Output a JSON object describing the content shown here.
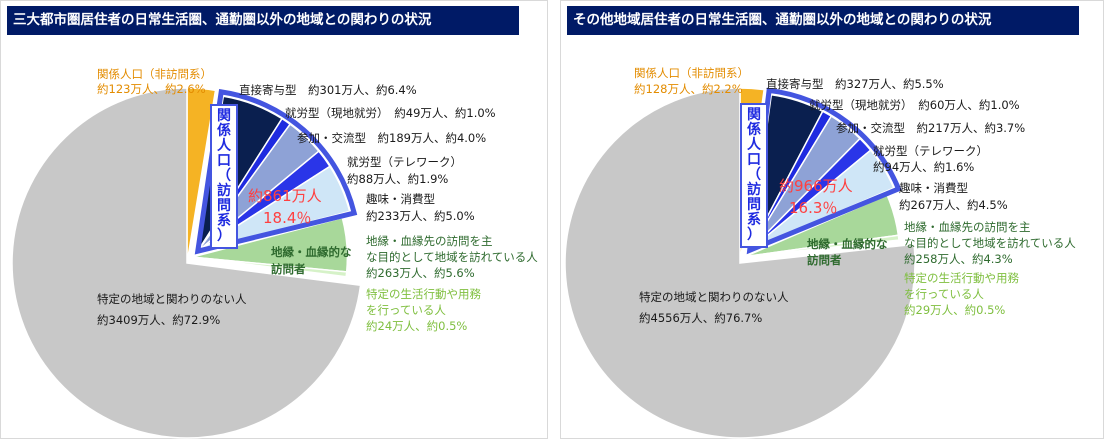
{
  "chart_data": [
    {
      "type": "pie",
      "title": "三大都市圏居住者の日常生活圏、通勤圏以外の地域との関わりの状況",
      "colors": {
        "non_visit": "#f5b324",
        "direct": "#0a1f4f",
        "work_local": "#1f2be0",
        "participation": "#8ea2d6",
        "telework": "#2a35e8",
        "hobby": "#cfe6f7",
        "kin": "#a8d89a",
        "errands": "#d6f2c8",
        "none": "#c8c8c8",
        "ring": "#4455e0",
        "label_dark": "#1a1a1a",
        "label_orange": "#e38c00",
        "label_green": "#2f6b2f",
        "label_lightgreen": "#7fbf3f",
        "label_red": "#ff4040",
        "label_blue": "#1f2be0"
      },
      "segments": [
        {
          "key": "non_visit",
          "name": "関係人口（非訪問系）",
          "value_text": "約123万人、約2.6%",
          "value": 2.6
        },
        {
          "key": "direct",
          "name": "直接寄与型",
          "value_text": "約301万人、約6.4%",
          "value": 6.4
        },
        {
          "key": "work_local",
          "name": "就労型（現地就労）",
          "value_text": "約49万人、約1.0%",
          "value": 1.0
        },
        {
          "key": "participation",
          "name": "参加・交流型",
          "value_text": "約189万人、約4.0%",
          "value": 4.0
        },
        {
          "key": "telework",
          "name": "就労型（テレワーク）",
          "value_text": "約88万人、約1.9%",
          "value": 1.9
        },
        {
          "key": "hobby",
          "name": "趣味・消費型",
          "value_text": "約233万人、約5.0%",
          "value": 5.0
        },
        {
          "key": "kin",
          "name": "地縁・血縁先の訪問を主な目的として地域を訪れている人",
          "value_text": "約263万人、約5.6%",
          "value": 5.6
        },
        {
          "key": "errands",
          "name": "特定の生活行動や用務を行っている人",
          "value_text": "約24万人、約0.5%",
          "value": 0.5
        },
        {
          "key": "none",
          "name": "特定の地域と関わりのない人",
          "value_text": "約3409万人、約72.9%",
          "value": 72.9
        }
      ],
      "visit_group": {
        "label": "関係人口（訪問系）",
        "total": "約861万人",
        "percent": "18.4％"
      },
      "kin_group_label": "地縁・血縁的な訪問者"
    },
    {
      "type": "pie",
      "title": "その他地域居住者の日常生活圏、通勤圏以外の地域との関わりの状況",
      "colors": {
        "non_visit": "#f5b324",
        "direct": "#0a1f4f",
        "work_local": "#1f2be0",
        "participation": "#8ea2d6",
        "telework": "#2a35e8",
        "hobby": "#cfe6f7",
        "kin": "#a8d89a",
        "errands": "#d6f2c8",
        "none": "#c8c8c8",
        "ring": "#4455e0",
        "label_dark": "#1a1a1a",
        "label_orange": "#e38c00",
        "label_green": "#2f6b2f",
        "label_lightgreen": "#7fbf3f",
        "label_red": "#ff4040",
        "label_blue": "#1f2be0"
      },
      "segments": [
        {
          "key": "non_visit",
          "name": "関係人口（非訪問系）",
          "value_text": "約128万人、約2.2%",
          "value": 2.2
        },
        {
          "key": "direct",
          "name": "直接寄与型",
          "value_text": "約327万人、約5.5%",
          "value": 5.5
        },
        {
          "key": "work_local",
          "name": "就労型（現地就労）",
          "value_text": "約60万人、約1.0%",
          "value": 1.0
        },
        {
          "key": "participation",
          "name": "参加・交流型",
          "value_text": "約217万人、約3.7%",
          "value": 3.7
        },
        {
          "key": "telework",
          "name": "就労型（テレワーク）",
          "value_text": "約94万人、約1.6%",
          "value": 1.6
        },
        {
          "key": "hobby",
          "name": "趣味・消費型",
          "value_text": "約267万人、約4.5%",
          "value": 4.5
        },
        {
          "key": "kin",
          "name": "地縁・血縁先の訪問を主な目的として地域を訪れている人",
          "value_text": "約258万人、約4.3%",
          "value": 4.3
        },
        {
          "key": "errands",
          "name": "特定の生活行動や用務を行っている人",
          "value_text": "約29万人、約0.5%",
          "value": 0.5
        },
        {
          "key": "none",
          "name": "特定の地域と関わりのない人",
          "value_text": "約4556万人、約76.7%",
          "value": 76.7
        }
      ],
      "visit_group": {
        "label": "関係人口（訪問系）",
        "total": "約966万人",
        "percent": "16.3％"
      },
      "kin_group_label": "地縁・血縁的な訪問者"
    }
  ]
}
